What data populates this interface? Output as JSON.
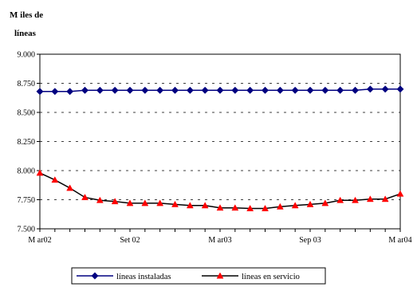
{
  "chart_data": {
    "type": "line",
    "ylabel_line1": "M iles de",
    "ylabel_line2": "líneas",
    "ylim": [
      7500,
      9000
    ],
    "yticks": [
      7500,
      7750,
      8000,
      8250,
      8500,
      8750,
      9000
    ],
    "ytick_labels": [
      "7.500",
      "7.750",
      "8.000",
      "8.250",
      "8.500",
      "8.750",
      "9.000"
    ],
    "xtick_labels": [
      {
        "index": 0,
        "label": "M ar02"
      },
      {
        "index": 6,
        "label": "Set 02"
      },
      {
        "index": 12,
        "label": "M ar03"
      },
      {
        "index": 18,
        "label": "Sep 03"
      },
      {
        "index": 24,
        "label": "M ar04"
      }
    ],
    "grid": "horizontal-dashed",
    "legend_position": "bottom",
    "series": [
      {
        "name": "líneas instaladas",
        "color": "#000080",
        "marker": "diamond",
        "values": [
          8680,
          8680,
          8680,
          8690,
          8690,
          8690,
          8690,
          8690,
          8690,
          8690,
          8690,
          8690,
          8690,
          8690,
          8690,
          8690,
          8690,
          8690,
          8690,
          8690,
          8690,
          8690,
          8700,
          8700,
          8700
        ]
      },
      {
        "name": "líneas en servicio",
        "color": "#ff0000",
        "line_color": "#000000",
        "marker": "triangle",
        "values": [
          7980,
          7920,
          7850,
          7770,
          7745,
          7735,
          7720,
          7720,
          7720,
          7710,
          7700,
          7700,
          7680,
          7680,
          7675,
          7675,
          7690,
          7700,
          7710,
          7720,
          7745,
          7745,
          7755,
          7755,
          7800
        ]
      }
    ]
  }
}
